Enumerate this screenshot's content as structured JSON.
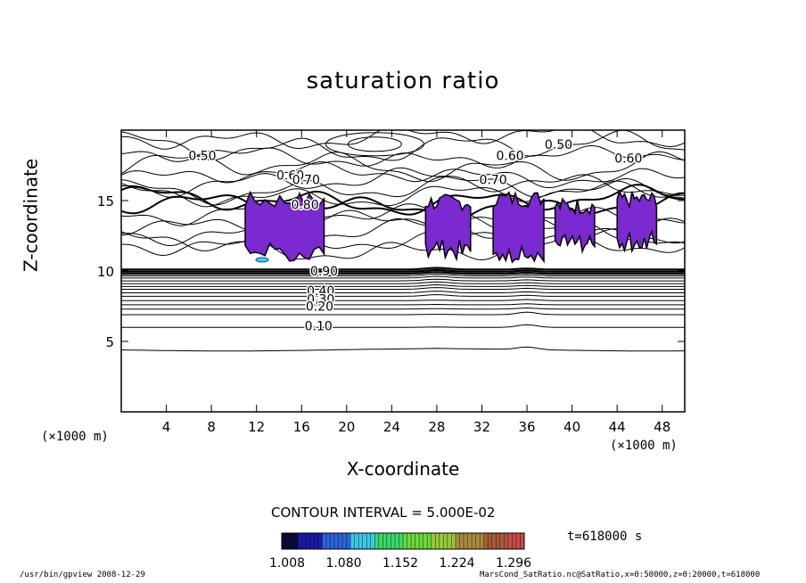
{
  "chart_data": {
    "type": "contour",
    "title": "saturation ratio",
    "xlabel": "X-coordinate",
    "ylabel": "Z-coordinate",
    "x_unit": "(×1000 m)",
    "xlim": [
      0,
      50
    ],
    "ylim": [
      0,
      20
    ],
    "x_ticks": [
      4,
      8,
      12,
      16,
      20,
      24,
      28,
      32,
      36,
      40,
      44,
      48
    ],
    "y_ticks": [
      5,
      10,
      15
    ],
    "contour_interval": "CONTOUR INTERVAL = 5.000E-02",
    "contour_labels": [
      {
        "text": "0.50",
        "x": 7.2,
        "y": 18.2
      },
      {
        "text": "0.60",
        "x": 15.0,
        "y": 16.8
      },
      {
        "text": "0.70",
        "x": 16.4,
        "y": 16.5
      },
      {
        "text": "0.80",
        "x": 16.3,
        "y": 14.7
      },
      {
        "text": "0.90",
        "x": 18.0,
        "y": 10.0
      },
      {
        "text": "0.40",
        "x": 17.7,
        "y": 8.6
      },
      {
        "text": "0.30",
        "x": 17.7,
        "y": 8.0
      },
      {
        "text": "0.20",
        "x": 17.6,
        "y": 7.5
      },
      {
        "text": "0.10",
        "x": 17.5,
        "y": 6.1
      },
      {
        "text": "0.50",
        "x": 38.8,
        "y": 19.0
      },
      {
        "text": "0.60",
        "x": 34.5,
        "y": 18.2
      },
      {
        "text": "0.60",
        "x": 45.0,
        "y": 18.0
      },
      {
        "text": "0.70",
        "x": 33.0,
        "y": 16.5
      }
    ],
    "supersaturated_regions_x": [
      [
        11,
        18
      ],
      [
        27,
        31
      ],
      [
        33,
        37.5
      ],
      [
        38.5,
        42
      ],
      [
        44,
        47.5
      ]
    ],
    "colorbar": {
      "ticks": [
        "1.008",
        "1.080",
        "1.152",
        "1.224",
        "1.296"
      ],
      "range": [
        1.008,
        1.296
      ],
      "colors": [
        "#0a0a3c",
        "#1a1aa8",
        "#2a64d8",
        "#3ac8e8",
        "#3ad86a",
        "#6ad83a",
        "#9ac83a",
        "#a88a3a",
        "#a85a3a",
        "#c84a4a"
      ]
    },
    "time_label": "t=618000 s"
  },
  "footer": {
    "left": "/usr/bin/gpview   2008-12-29",
    "right": "MarsCond_SatRatio.nc@SatRatio,x=0:50000,z=0:20000,t=618000"
  },
  "colors": {
    "region_fill": "#7a2ad0",
    "region_core": "#2ae0c8",
    "line": "#000000"
  }
}
